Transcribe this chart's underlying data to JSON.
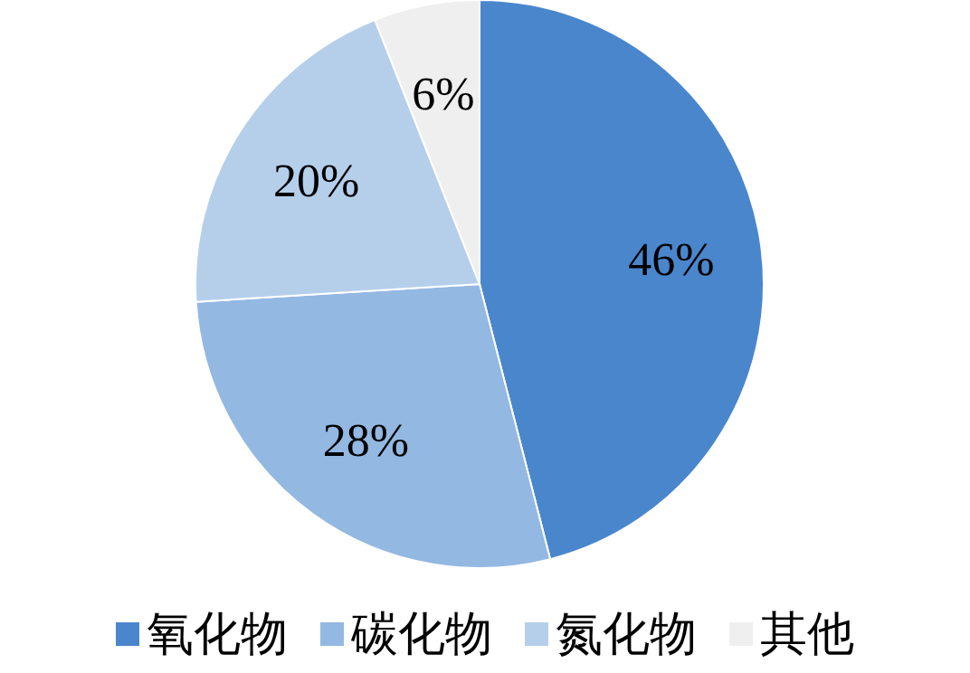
{
  "chart_data": {
    "type": "pie",
    "categories": [
      "氧化物",
      "碳化物",
      "氮化物",
      "其他"
    ],
    "values": [
      46,
      28,
      20,
      6
    ],
    "colors": [
      "#4a86cc",
      "#93b8e2",
      "#b5cfeb",
      "#efefef"
    ],
    "value_labels": [
      "46%",
      "28%",
      "20%",
      "6%"
    ],
    "legend": "bottom"
  }
}
